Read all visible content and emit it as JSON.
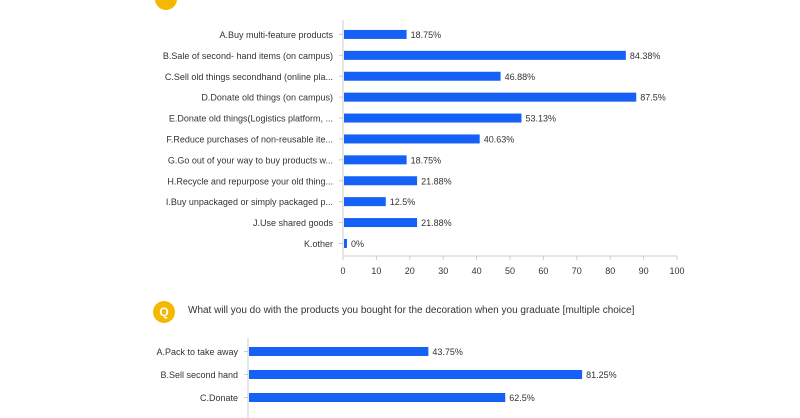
{
  "question2": {
    "icon_glyph": "Q",
    "title": "What will you do with the products you bought for the decoration when you graduate [multiple choice]"
  },
  "colors": {
    "bar": "#1560f5",
    "accent": "#f5b800",
    "axis": "#cccccc"
  },
  "chart_data": [
    {
      "type": "bar",
      "orientation": "horizontal",
      "categories": [
        "A.Buy multi-feature products",
        "B.Sale of second- hand items (on campus)",
        "C.Sell old things secondhand (online pla...",
        "D.Donate old things (on campus)",
        "E.Donate old things(Logistics platform, ...",
        "F.Reduce purchases of non-reusable ite...",
        "G.Go out of your way to buy products w...",
        "H.Recycle and repurpose your old thing...",
        "I.Buy unpackaged or simply packaged p...",
        "J.Use shared goods",
        "K.other"
      ],
      "values": [
        18.75,
        84.38,
        46.88,
        87.5,
        53.13,
        40.63,
        18.75,
        21.88,
        12.5,
        21.88,
        0
      ],
      "value_labels": [
        "18.75%",
        "84.38%",
        "46.88%",
        "87.5%",
        "53.13%",
        "40.63%",
        "18.75%",
        "21.88%",
        "12.5%",
        "21.88%",
        "0%"
      ],
      "xlim": [
        0,
        100
      ],
      "xticks": [
        "0",
        "10",
        "20",
        "30",
        "40",
        "50",
        "60",
        "70",
        "80",
        "90",
        "100"
      ],
      "grid": false
    },
    {
      "type": "bar",
      "orientation": "horizontal",
      "categories": [
        "A.Pack to take away",
        "B.Sell second hand",
        "C.Donate"
      ],
      "values": [
        43.75,
        81.25,
        62.5
      ],
      "value_labels": [
        "43.75%",
        "81.25%",
        "62.5%"
      ],
      "xlim": [
        0,
        100
      ],
      "partial_category_visible": true,
      "grid": false
    }
  ]
}
